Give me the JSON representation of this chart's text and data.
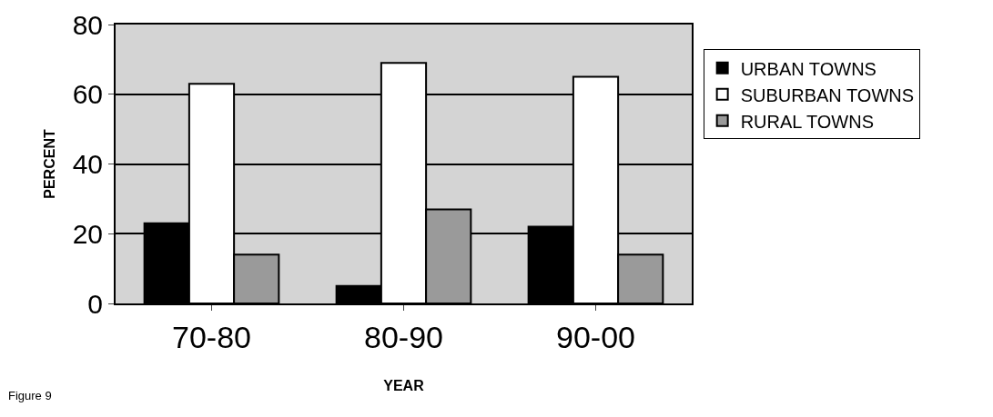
{
  "chart_data": {
    "type": "bar",
    "categories": [
      "70-80",
      "80-90",
      "90-00"
    ],
    "series": [
      {
        "name": "URBAN TOWNS",
        "color": "#000000",
        "values": [
          23,
          5,
          22
        ]
      },
      {
        "name": "SUBURBAN TOWNS",
        "color": "#ffffff",
        "values": [
          63,
          69,
          65
        ]
      },
      {
        "name": "RURAL TOWNS",
        "color": "#9a9a9a",
        "values": [
          14,
          27,
          14
        ]
      }
    ],
    "xlabel": "YEAR",
    "ylabel": "PERCENT",
    "ylim": [
      0,
      80
    ],
    "yticks": [
      0,
      20,
      40,
      60,
      80
    ],
    "grid": "y",
    "legend": "right",
    "annotations": [
      "Figure 9"
    ]
  }
}
